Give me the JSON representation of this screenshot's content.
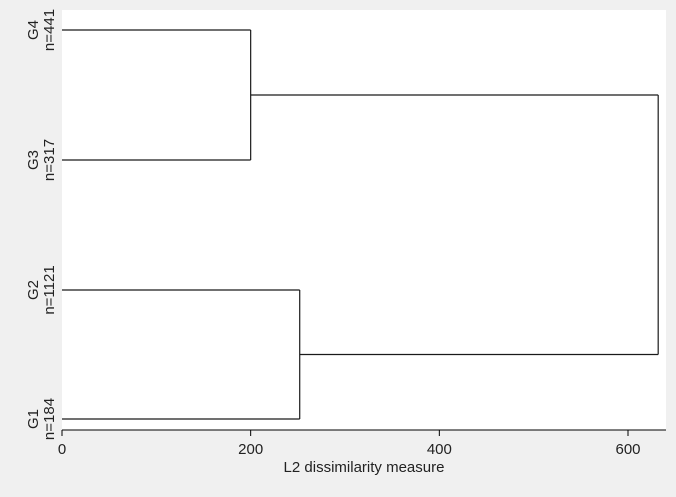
{
  "chart_data": {
    "type": "dendrogram",
    "orientation": "horizontal",
    "xlabel": "L2 dissimilarity measure",
    "xlim": [
      0,
      632
    ],
    "xticks": [
      0,
      200,
      400,
      600
    ],
    "grid": false,
    "leaves": [
      {
        "group": "G4",
        "count": "n=441"
      },
      {
        "group": "G3",
        "count": "n=317"
      },
      {
        "group": "G2",
        "count": "n=1121"
      },
      {
        "group": "G1",
        "count": "n=184"
      }
    ],
    "merges": [
      {
        "left": "G4",
        "right": "G3",
        "height": 200
      },
      {
        "left": "G2",
        "right": "G1",
        "height": 252
      },
      {
        "left": "G4+G3",
        "right": "G2+G1",
        "height": 632
      }
    ]
  },
  "colors": {
    "page_background": "#f0f0f0",
    "plot_background": "#ffffff",
    "line": "#1a1a1a"
  }
}
